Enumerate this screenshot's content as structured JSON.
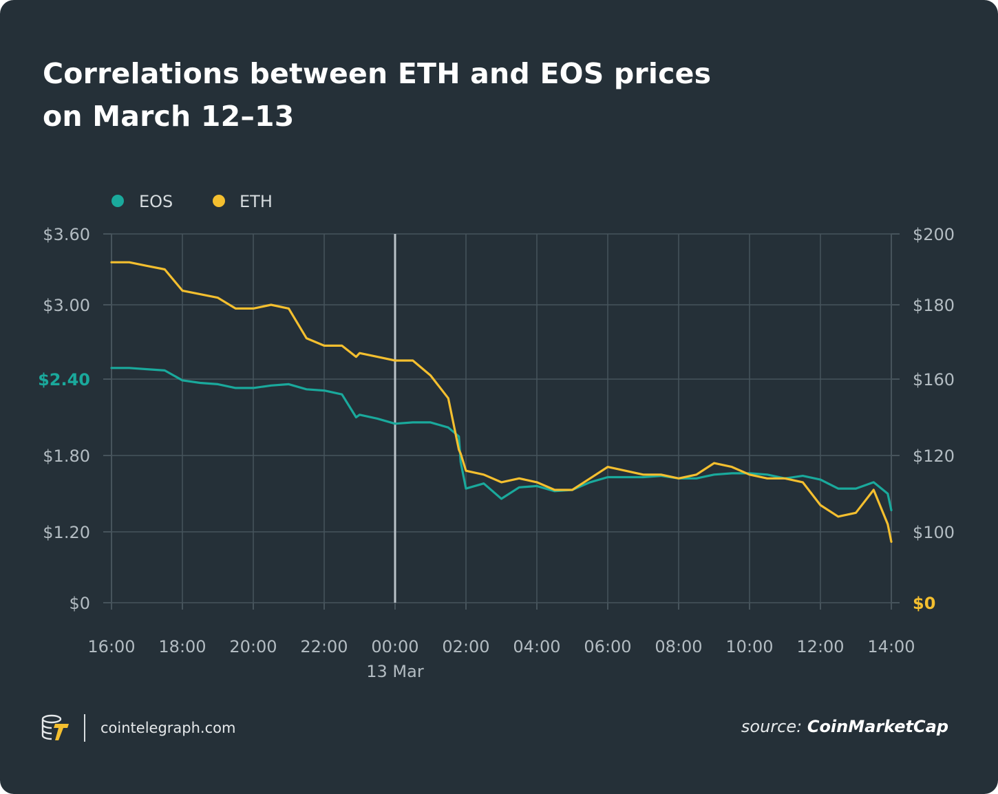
{
  "title_line1": "Correlations between ETH and EOS prices",
  "title_line2": "on March 12–13",
  "footer": {
    "site": "cointelegraph.com",
    "source_prefix": "source:",
    "source_name": "CoinMarketCap",
    "logo_icon": "cointelegraph-logo-icon"
  },
  "colors": {
    "background": "#253038",
    "eos": "#1aa99c",
    "eth": "#f4bf2f",
    "grid": "#47545c",
    "axis_text": "#b3bcc2",
    "divider": "#b9c2c8"
  },
  "chart_data": {
    "type": "line",
    "title": "Correlations between ETH and EOS prices on March 12–13",
    "legend": [
      "EOS",
      "ETH"
    ],
    "legend_placement": "top-left",
    "grid": true,
    "x_tick_labels": [
      "16:00",
      "18:00",
      "20:00",
      "22:00",
      "00:00",
      "02:00",
      "04:00",
      "06:00",
      "08:00",
      "10:00",
      "12:00",
      "14:00"
    ],
    "x_sublabel": "13 Mar",
    "x_divider_at": "00:00",
    "y_left": {
      "tick_labels": [
        "$0",
        "$1.20",
        "$1.80",
        "$2.40",
        "$3.00",
        "$3.60"
      ],
      "tick_positions": [
        0,
        1.2,
        1.8,
        2.4,
        3.0,
        3.6
      ],
      "highlight": "$2.40",
      "highlight_color": "#1aa99c",
      "range": [
        0,
        3.6
      ],
      "series": "EOS"
    },
    "y_right": {
      "tick_labels": [
        "$0",
        "$100",
        "$120",
        "$160",
        "$180",
        "$200"
      ],
      "tick_positions": [
        0,
        100,
        120,
        160,
        180,
        200
      ],
      "highlight": "$0",
      "highlight_color": "#f4bf2f",
      "range": [
        0,
        200
      ],
      "series": "ETH"
    },
    "x_hours": [
      0,
      0.5,
      1,
      1.5,
      2,
      2.5,
      3,
      3.5,
      4,
      4.5,
      5,
      5.5,
      6,
      6.5,
      6.9,
      7,
      7.5,
      8,
      8.5,
      9,
      9.5,
      9.8,
      9.85,
      10,
      10.5,
      11,
      11.5,
      12,
      12.5,
      13,
      13.5,
      14,
      14.5,
      15,
      15.5,
      16,
      16.5,
      17,
      17.5,
      18,
      18.5,
      19,
      19.5,
      20,
      20.5,
      21,
      21.5,
      21.9,
      22
    ],
    "series": [
      {
        "name": "EOS",
        "axis": "left",
        "values": [
          2.49,
          2.49,
          2.48,
          2.47,
          2.39,
          2.37,
          2.36,
          2.33,
          2.33,
          2.35,
          2.36,
          2.32,
          2.31,
          2.28,
          2.1,
          2.12,
          2.09,
          2.05,
          2.06,
          2.06,
          2.02,
          1.95,
          1.75,
          1.54,
          1.58,
          1.46,
          1.55,
          1.56,
          1.52,
          1.53,
          1.59,
          1.63,
          1.63,
          1.63,
          1.64,
          1.62,
          1.62,
          1.65,
          1.66,
          1.66,
          1.65,
          1.62,
          1.64,
          1.61,
          1.54,
          1.54,
          1.59,
          1.5,
          1.37
        ]
      },
      {
        "name": "ETH",
        "axis": "right",
        "values": [
          192,
          192,
          191,
          190,
          184,
          183,
          182,
          179,
          179,
          180,
          179,
          171,
          169,
          169,
          166,
          167,
          166,
          165,
          165,
          161,
          150,
          123,
          121,
          116,
          115,
          113,
          114,
          113,
          111,
          111,
          114,
          117,
          116,
          115,
          115,
          114,
          115,
          118,
          117,
          115,
          114,
          114,
          113,
          107,
          104,
          105,
          111,
          102,
          86
        ]
      }
    ]
  }
}
